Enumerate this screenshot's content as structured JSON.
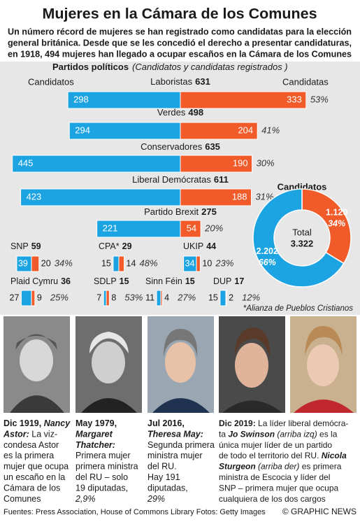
{
  "header": {
    "title": "Mujeres en la Cámara de los Comunes",
    "subtitle": [
      "Un número récord de mujeres se han registrado como candidatas para la elección",
      "general británica. Desde que se les concedió el derecho a presentar candidaturas,",
      "en 1918, 494 mujeres han llegado a ocupar escaños en la Cámara de los Comunes"
    ]
  },
  "chart_data": [
    {
      "type": "butterfly",
      "title": "Partidos políticos",
      "subtitle": "(Candidatos y candidatas registrados )",
      "left_label": "Candidatos",
      "right_label": "Candidatas",
      "categories": [
        "Laboristas",
        "Verdes",
        "Conservadores",
        "Liberal Demócratas",
        "Partido Brexit",
        "SNP",
        "CPA*",
        "UKIP",
        "Plaid Cymru",
        "SDLP",
        "Sinn Féin",
        "DUP"
      ],
      "totals": [
        631,
        498,
        635,
        611,
        275,
        59,
        29,
        44,
        36,
        15,
        15,
        17
      ],
      "series": [
        {
          "name": "Candidatos",
          "color": "#1ba3e2",
          "values": [
            298,
            294,
            445,
            423,
            221,
            39,
            15,
            34,
            27,
            7,
            11,
            15
          ]
        },
        {
          "name": "Candidatas",
          "color": "#f15a29",
          "values": [
            333,
            204,
            190,
            188,
            54,
            20,
            14,
            10,
            9,
            8,
            4,
            2
          ]
        }
      ],
      "shares": {
        "values": [
          53,
          41,
          30,
          31,
          20,
          34,
          48,
          23,
          25,
          53,
          27,
          12
        ],
        "value_labels": [
          "53%",
          "41%",
          "30%",
          "31%",
          "20%",
          "34%",
          "48%",
          "23%",
          "25%",
          "53%",
          "27%",
          "12%"
        ]
      },
      "footnote": "*Alianza de Pueblos Cristianos"
    },
    {
      "type": "donut",
      "title": "Candidatos",
      "total_label": "Total",
      "total": {
        "value": 3322,
        "label": "3.322"
      },
      "series": [
        {
          "color": "#f15a29",
          "values": [
            1120
          ],
          "value_labels": [
            "1.120"
          ],
          "share": {
            "value": 34,
            "label": "34%"
          }
        },
        {
          "color": "#1ba3e2",
          "values": [
            2202
          ],
          "value_labels": [
            "2.202"
          ],
          "share": {
            "value": 66,
            "label": "66%"
          }
        }
      ]
    }
  ],
  "profiles": [
    {
      "lines": [
        [
          {
            "text": "Dic 1919, ",
            "style": "b"
          },
          {
            "text": "Nancy",
            "style": "bi"
          }
        ],
        [
          {
            "text": "Astor:",
            "style": "bi"
          },
          {
            "text": " La viz-",
            "style": ""
          }
        ],
        [
          {
            "text": "condesa Astor",
            "style": ""
          }
        ],
        [
          {
            "text": "es la primera",
            "style": ""
          }
        ],
        [
          {
            "text": "mujer que ocupa",
            "style": ""
          }
        ],
        [
          {
            "text": "un escaño en la",
            "style": ""
          }
        ],
        [
          {
            "text": "Cámara de los",
            "style": ""
          }
        ],
        [
          {
            "text": "Comunes",
            "style": ""
          }
        ]
      ]
    },
    {
      "lines": [
        [
          {
            "text": "May 1979,",
            "style": "b"
          }
        ],
        [
          {
            "text": "Margaret",
            "style": "bi"
          }
        ],
        [
          {
            "text": "Thatcher:",
            "style": "bi"
          }
        ],
        [
          {
            "text": "Primera mujer",
            "style": ""
          }
        ],
        [
          {
            "text": "primera ministra",
            "style": ""
          }
        ],
        [
          {
            "text": "del RU – solo",
            "style": ""
          }
        ],
        [
          {
            "text": "19 diputadas,",
            "style": ""
          }
        ],
        [
          {
            "text": "2,9%",
            "style": "i"
          }
        ]
      ]
    },
    {
      "lines": [
        [
          {
            "text": "Jul 2016,",
            "style": "b"
          }
        ],
        [
          {
            "text": "Theresa May:",
            "style": "bi"
          }
        ],
        [
          {
            "text": "Segunda primera",
            "style": ""
          }
        ],
        [
          {
            "text": "ministra mujer",
            "style": ""
          }
        ],
        [
          {
            "text": "del RU.",
            "style": ""
          }
        ],
        [
          {
            "text": "Hay 191",
            "style": ""
          }
        ],
        [
          {
            "text": "diputadas,",
            "style": ""
          }
        ],
        [
          {
            "text": "29%",
            "style": "i"
          }
        ]
      ]
    },
    {
      "lines": [
        [
          {
            "text": "Dic 2019:",
            "style": "b"
          },
          {
            "text": " La líder liberal demócra-",
            "style": ""
          }
        ],
        [
          {
            "text": "ta ",
            "style": ""
          },
          {
            "text": "Jo Swinson",
            "style": "bi"
          },
          {
            "text": " (arriba izq)",
            "style": "i"
          },
          {
            "text": " es la",
            "style": ""
          }
        ],
        [
          {
            "text": "única mujer líder de un partido",
            "style": ""
          }
        ],
        [
          {
            "text": "de todo el territorio del RU. ",
            "style": ""
          },
          {
            "text": "Nicola",
            "style": "bi"
          }
        ],
        [
          {
            "text": "Sturgeon",
            "style": "bi"
          },
          {
            "text": " (arriba der)",
            "style": "i"
          },
          {
            "text": " es primera",
            "style": ""
          }
        ],
        [
          {
            "text": "ministra de Escocia y líder del",
            "style": ""
          }
        ],
        [
          {
            "text": "SNP – primera mujer que ocupa",
            "style": ""
          }
        ],
        [
          {
            "text": "cualquiera de los dos cargos",
            "style": ""
          }
        ]
      ]
    }
  ],
  "footer": {
    "sources": "Fuentes: Press Association, House of Commons Library  Fotos: Getty Images",
    "credit": "© GRAPHIC NEWS"
  }
}
